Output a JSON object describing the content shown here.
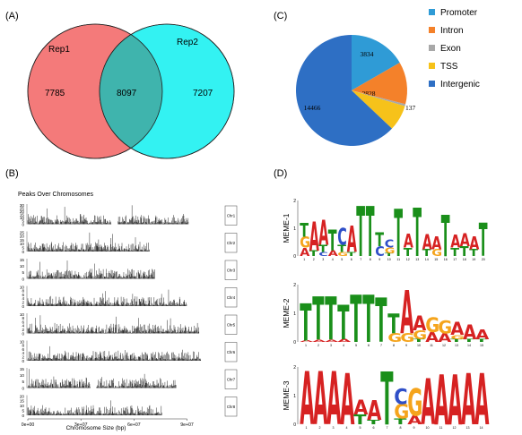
{
  "panel_labels": {
    "a": "(A)",
    "b": "(B)",
    "c": "(C)",
    "d": "(D)"
  },
  "venn": {
    "set1": "Rep1",
    "set2": "Rep2",
    "only1": "7785",
    "both": "8097",
    "only2": "7207",
    "color1": "#f47a7a",
    "color2": "#33f2f2",
    "overlap_color": "#3fb4ad"
  },
  "chart_data": [
    {
      "type": "pie",
      "panel": "(C)",
      "categories": [
        "Promoter",
        "Intron",
        "Exon",
        "TSS",
        "Intergenic"
      ],
      "values": [
        3834,
        2828,
        137,
        1724,
        14466
      ],
      "labels": [
        "3834",
        "2828",
        "137",
        "1724",
        "14466"
      ],
      "colors": [
        "#2f9bd6",
        "#f4812a",
        "#a8a8a8",
        "#f6c21a",
        "#2e6fc4"
      ],
      "legend_position": "right"
    },
    {
      "type": "bar",
      "panel": "(B)",
      "title": "Peaks Over Chromosomes",
      "xlabel": "Chromosome Size (bp)",
      "x_ticks": [
        "0e+00",
        "3e+07",
        "6e+07",
        "9e+07"
      ],
      "xlim": [
        0,
        110000000
      ],
      "series": [
        {
          "name": "Chr1",
          "length": 91000000,
          "y_ticks": [
            "30",
            "25",
            "20",
            "15",
            "10",
            "5",
            "0"
          ],
          "ymax": 33,
          "gaps": [
            [
              0.52,
              0.56
            ]
          ]
        },
        {
          "name": "Chr2",
          "length": 69000000,
          "y_ticks": [
            "25",
            "20",
            "15",
            "10",
            "5",
            "0"
          ],
          "ymax": 27,
          "gaps": []
        },
        {
          "name": "Chr3",
          "length": 72000000,
          "y_ticks": [
            "15",
            "10",
            "5",
            "0"
          ],
          "ymax": 17,
          "gaps": []
        },
        {
          "name": "Chr4",
          "length": 90000000,
          "y_ticks": [
            "10",
            "8",
            "6",
            "4",
            "2",
            "0"
          ],
          "ymax": 11,
          "gaps": []
        },
        {
          "name": "Chr5",
          "length": 97000000,
          "y_ticks": [
            "10",
            "8",
            "6",
            "4",
            "2",
            "0"
          ],
          "ymax": 11,
          "gaps": []
        },
        {
          "name": "Chr6",
          "length": 98000000,
          "y_ticks": [
            "10",
            "8",
            "6",
            "4",
            "2",
            "0"
          ],
          "ymax": 11,
          "gaps": []
        },
        {
          "name": "Chr7",
          "length": 84000000,
          "y_ticks": [
            "15",
            "10",
            "5",
            "0"
          ],
          "ymax": 17,
          "gaps": [
            [
              0.42,
              0.46
            ]
          ]
        },
        {
          "name": "Chr8",
          "length": 76000000,
          "y_ticks": [
            "20",
            "15",
            "10",
            "5",
            "0"
          ],
          "ymax": 22,
          "gaps": []
        }
      ]
    }
  ],
  "motifs": [
    {
      "name": "MEME-1",
      "y_ticks": [
        "2",
        "1",
        "0"
      ],
      "columns": [
        [
          [
            "T",
            0.5
          ],
          [
            "G",
            0.4
          ],
          [
            "A",
            0.3
          ]
        ],
        [
          [
            "A",
            1.05
          ],
          [
            "T",
            0.2
          ]
        ],
        [
          [
            "A",
            0.9
          ],
          [
            "T",
            0.25
          ],
          [
            "C",
            0.15
          ]
        ],
        [
          [
            "T",
            0.75
          ],
          [
            "A",
            0.2
          ]
        ],
        [
          [
            "C",
            0.6
          ],
          [
            "T",
            0.25
          ],
          [
            "G",
            0.15
          ]
        ],
        [
          [
            "A",
            0.95
          ],
          [
            "T",
            0.15
          ]
        ],
        [
          [
            "T",
            1.8
          ]
        ],
        [
          [
            "T",
            1.8
          ]
        ],
        [
          [
            "C",
            0.35
          ],
          [
            "T",
            0.5
          ]
        ],
        [
          [
            "C",
            0.3
          ],
          [
            "G",
            0.2
          ],
          [
            "T",
            0.1
          ]
        ],
        [
          [
            "T",
            1.7
          ]
        ],
        [
          [
            "A",
            0.5
          ],
          [
            "T",
            0.3
          ]
        ],
        [
          [
            "T",
            1.75
          ]
        ],
        [
          [
            "A",
            0.55
          ],
          [
            "T",
            0.25
          ]
        ],
        [
          [
            "A",
            0.45
          ],
          [
            "G",
            0.25
          ]
        ],
        [
          [
            "T",
            1.5
          ]
        ],
        [
          [
            "A",
            0.45
          ],
          [
            "T",
            0.3
          ]
        ],
        [
          [
            "A",
            0.45
          ],
          [
            "T",
            0.35
          ]
        ],
        [
          [
            "A",
            0.45
          ],
          [
            "T",
            0.25
          ]
        ],
        [
          [
            "T",
            1.2
          ]
        ]
      ],
      "tick_labels": [
        "1",
        "2",
        "3",
        "4",
        "5",
        "6",
        "7",
        "8",
        "9",
        "10",
        "11",
        "12",
        "13",
        "14",
        "15",
        "16",
        "17",
        "18",
        "19",
        "20"
      ]
    },
    {
      "name": "MEME-2",
      "y_ticks": [
        "2",
        "1",
        "0"
      ],
      "columns": [
        [
          [
            "T",
            1.3
          ],
          [
            "A",
            0.05
          ]
        ],
        [
          [
            "T",
            1.5
          ],
          [
            "A",
            0.08
          ]
        ],
        [
          [
            "T",
            1.5
          ],
          [
            "A",
            0.08
          ]
        ],
        [
          [
            "T",
            1.2
          ],
          [
            "A",
            0.1
          ]
        ],
        [
          [
            "T",
            1.65
          ]
        ],
        [
          [
            "T",
            1.65
          ]
        ],
        [
          [
            "T",
            1.55
          ]
        ],
        [
          [
            "T",
            0.7
          ],
          [
            "G",
            0.3
          ]
        ],
        [
          [
            "A",
            1.5
          ],
          [
            "G",
            0.3
          ]
        ],
        [
          [
            "A",
            0.5
          ],
          [
            "G",
            0.3
          ],
          [
            "T",
            0.1
          ]
        ],
        [
          [
            "G",
            0.5
          ],
          [
            "A",
            0.35
          ]
        ],
        [
          [
            "G",
            0.45
          ],
          [
            "A",
            0.3
          ]
        ],
        [
          [
            "A",
            0.45
          ],
          [
            "G",
            0.15
          ],
          [
            "T",
            0.1
          ]
        ],
        [
          [
            "A",
            0.5
          ],
          [
            "T",
            0.1
          ]
        ],
        [
          [
            "A",
            0.35
          ],
          [
            "T",
            0.1
          ]
        ]
      ],
      "tick_labels": [
        "1",
        "2",
        "3",
        "4",
        "5",
        "6",
        "7",
        "8",
        "9",
        "10",
        "11",
        "12",
        "13",
        "14",
        "15"
      ]
    },
    {
      "name": "MEME-3",
      "y_ticks": [
        "2",
        "1",
        "0"
      ],
      "columns": [
        [
          [
            "A",
            1.85
          ]
        ],
        [
          [
            "A",
            1.85
          ]
        ],
        [
          [
            "A",
            1.85
          ]
        ],
        [
          [
            "A",
            1.8
          ]
        ],
        [
          [
            "T",
            0.35
          ],
          [
            "A",
            0.5
          ]
        ],
        [
          [
            "A",
            0.7
          ],
          [
            "T",
            0.15
          ]
        ],
        [
          [
            "T",
            1.85
          ]
        ],
        [
          [
            "G",
            0.5
          ],
          [
            "C",
            0.55
          ],
          [
            "T",
            0.2
          ]
        ],
        [
          [
            "G",
            0.95
          ],
          [
            "A",
            0.3
          ]
        ],
        [
          [
            "A",
            1.6
          ]
        ],
        [
          [
            "A",
            1.75
          ]
        ],
        [
          [
            "A",
            1.75
          ]
        ],
        [
          [
            "A",
            1.8
          ]
        ],
        [
          [
            "A",
            1.8
          ]
        ]
      ],
      "tick_labels": [
        "1",
        "2",
        "3",
        "4",
        "5",
        "6",
        "7",
        "8",
        "9",
        "10",
        "11",
        "12",
        "13",
        "14"
      ]
    }
  ],
  "base_colors": {
    "A": "#d62222",
    "C": "#2f4fc8",
    "G": "#f5a41c",
    "T": "#1a8f1a"
  }
}
